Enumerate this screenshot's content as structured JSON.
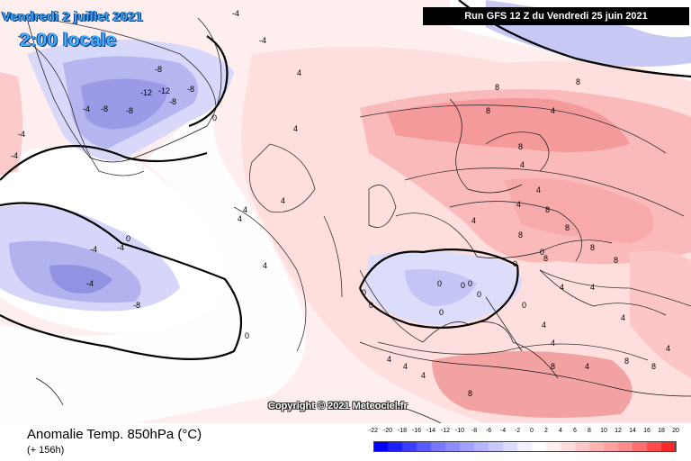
{
  "header": {
    "date_text": "Vendredi 2 juillet 2021",
    "time_text": "2:00 locale",
    "run_text": "Run GFS 12 Z du Vendredi 25 juin 2021"
  },
  "footer": {
    "copyright": "Copyright © 2021 Meteociel.fr",
    "field_label": "Anomalie Temp. 850hPa (°C)",
    "lead_time": "(+ 156h)"
  },
  "legend": {
    "ticks": [
      "-22",
      "-20",
      "-18",
      "-16",
      "-14",
      "-12",
      "-10",
      "-8",
      "-6",
      "-4",
      "-2",
      "0",
      "2",
      "4",
      "6",
      "8",
      "10",
      "12",
      "14",
      "16",
      "18",
      "20"
    ],
    "colors": [
      "#0000ff",
      "#1e1eff",
      "#3c3cff",
      "#5a5aff",
      "#7878ff",
      "#8c8cff",
      "#a0a0ff",
      "#b4b4ff",
      "#c8c8ff",
      "#dcdcff",
      "#f0f0ff",
      "#ffffff",
      "#fff0f0",
      "#ffdcdc",
      "#ffc8c8",
      "#ffb4b4",
      "#ffa0a0",
      "#ff8c8c",
      "#ff6e6e",
      "#ff4b4b",
      "#ff2828"
    ]
  },
  "contour_labels": [
    "-4",
    "-4",
    "-8",
    "-12",
    "-12",
    "-8",
    "-8",
    "-8",
    "-8",
    "-8",
    "-4",
    "-4",
    "-4",
    "-4",
    "-4",
    "-4",
    "0",
    "0",
    "0",
    "0",
    "0",
    "0",
    "0",
    "0",
    "0",
    "0",
    "0",
    "0",
    "0",
    "4",
    "4",
    "4",
    "4",
    "4",
    "4",
    "4",
    "4",
    "4",
    "4",
    "4",
    "4",
    "4",
    "4",
    "4",
    "4",
    "4",
    "4",
    "4",
    "4",
    "4",
    "8",
    "8",
    "8",
    "8",
    "8",
    "8",
    "8",
    "8",
    "8",
    "8",
    "8",
    "8",
    "8",
    "8",
    "8"
  ],
  "colors": {
    "warm_light": "#ffe7e7",
    "warm_mid": "#ffc8c8",
    "warm_strong": "#f89090",
    "cold_light": "#e4e4ff",
    "cold_mid": "#b8b8f2",
    "cold_strong": "#8c8ce6",
    "land_border": "#000000"
  }
}
